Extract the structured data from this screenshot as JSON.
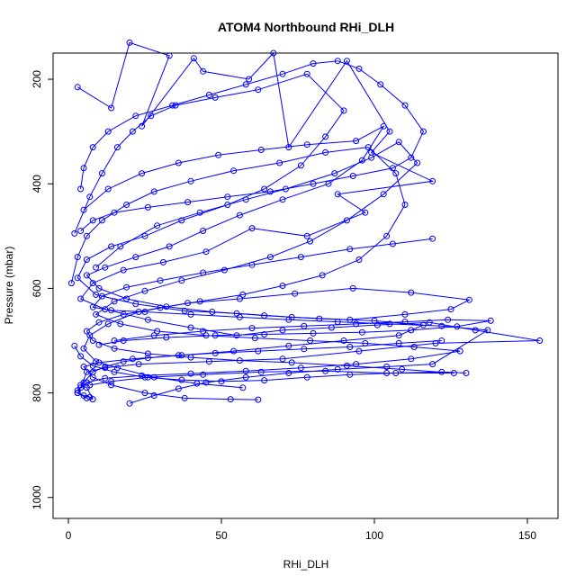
{
  "chart_data": {
    "type": "scatter",
    "title": "ATOM4 Northbound RHi_DLH",
    "xlabel": "RHi_DLH",
    "ylabel": "Pressure (mbar)",
    "xlim": [
      -5,
      160
    ],
    "ylim": [
      1040,
      150
    ],
    "y_reversed": true,
    "x_ticks": [
      0,
      50,
      100,
      150
    ],
    "y_ticks": [
      200,
      400,
      600,
      800,
      1000
    ],
    "grid": false,
    "legend": "none",
    "marker": "open-circle",
    "connected": true,
    "series_color": "#0000ff",
    "series": [
      {
        "values": [
          [
            3,
            215
          ],
          [
            14,
            255
          ],
          [
            20,
            130
          ],
          [
            33,
            155
          ],
          [
            24,
            290
          ],
          [
            41,
            160
          ],
          [
            44,
            185
          ],
          [
            59,
            200
          ],
          [
            67,
            150
          ],
          [
            72,
            330
          ],
          [
            91,
            165
          ],
          [
            105,
            300
          ],
          [
            99,
            340
          ],
          [
            119,
            395
          ],
          [
            88,
            420
          ],
          [
            97,
            455
          ],
          [
            78,
            500
          ],
          [
            60,
            485
          ],
          [
            45,
            530
          ],
          [
            31,
            550
          ],
          [
            18,
            565
          ],
          [
            8,
            590
          ],
          [
            4,
            620
          ],
          [
            12,
            640
          ],
          [
            26,
            660
          ],
          [
            40,
            675
          ],
          [
            55,
            690
          ],
          [
            70,
            680
          ],
          [
            86,
            675
          ],
          [
            101,
            670
          ],
          [
            118,
            665
          ],
          [
            133,
            680
          ],
          [
            154,
            700
          ],
          [
            120,
            705
          ],
          [
            95,
            720
          ],
          [
            70,
            735
          ],
          [
            46,
            740
          ],
          [
            23,
            745
          ],
          [
            12,
            752
          ],
          [
            6,
            760
          ],
          [
            4,
            790
          ],
          [
            3,
            800
          ],
          [
            6,
            810
          ]
        ]
      },
      {
        "values": [
          [
            2,
            495
          ],
          [
            7,
            425
          ],
          [
            11,
            380
          ],
          [
            16,
            330
          ],
          [
            21,
            300
          ],
          [
            27,
            270
          ],
          [
            35,
            250
          ],
          [
            48,
            235
          ],
          [
            62,
            220
          ],
          [
            78,
            190
          ],
          [
            90,
            260
          ],
          [
            84,
            310
          ],
          [
            76,
            365
          ],
          [
            64,
            410
          ],
          [
            52,
            440
          ],
          [
            37,
            470
          ],
          [
            25,
            500
          ],
          [
            14,
            520
          ],
          [
            6,
            545
          ],
          [
            3,
            580
          ],
          [
            9,
            612
          ],
          [
            22,
            630
          ],
          [
            38,
            643
          ],
          [
            55,
            648
          ],
          [
            73,
            655
          ],
          [
            92,
            660
          ],
          [
            110,
            650
          ],
          [
            125,
            640
          ],
          [
            131,
            622
          ],
          [
            112,
            608
          ],
          [
            93,
            600
          ],
          [
            74,
            610
          ],
          [
            56,
            620
          ],
          [
            39,
            628
          ],
          [
            23,
            645
          ],
          [
            13,
            668
          ],
          [
            7,
            690
          ],
          [
            5,
            715
          ],
          [
            9,
            740
          ],
          [
            16,
            752
          ],
          [
            28,
            770
          ],
          [
            42,
            782
          ],
          [
            57,
            790
          ]
        ]
      },
      {
        "values": [
          [
            5,
            450
          ],
          [
            13,
            410
          ],
          [
            24,
            380
          ],
          [
            36,
            360
          ],
          [
            49,
            345
          ],
          [
            63,
            335
          ],
          [
            78,
            325
          ],
          [
            94,
            318
          ],
          [
            103,
            290
          ],
          [
            96,
            355
          ],
          [
            85,
            400
          ],
          [
            70,
            430
          ],
          [
            56,
            460
          ],
          [
            44,
            490
          ],
          [
            33,
            520
          ],
          [
            22,
            540
          ],
          [
            12,
            560
          ],
          [
            6,
            575
          ],
          [
            10,
            600
          ],
          [
            19,
            620
          ],
          [
            32,
            635
          ],
          [
            47,
            645
          ],
          [
            64,
            652
          ],
          [
            82,
            658
          ],
          [
            100,
            662
          ],
          [
            116,
            670
          ],
          [
            108,
            690
          ],
          [
            90,
            700
          ],
          [
            72,
            710
          ],
          [
            54,
            720
          ],
          [
            37,
            728
          ],
          [
            21,
            735
          ],
          [
            10,
            742
          ],
          [
            5,
            750
          ],
          [
            8,
            770
          ],
          [
            14,
            785
          ],
          [
            25,
            800
          ],
          [
            38,
            810
          ],
          [
            53,
            812
          ],
          [
            62,
            813
          ]
        ]
      },
      {
        "values": [
          [
            9,
            560
          ],
          [
            17,
            520
          ],
          [
            29,
            480
          ],
          [
            43,
            455
          ],
          [
            58,
            430
          ],
          [
            71,
            410
          ],
          [
            87,
            380
          ],
          [
            99,
            350
          ],
          [
            108,
            320
          ],
          [
            114,
            360
          ],
          [
            103,
            420
          ],
          [
            91,
            470
          ],
          [
            79,
            510
          ],
          [
            66,
            540
          ],
          [
            51,
            565
          ],
          [
            37,
            585
          ],
          [
            25,
            605
          ],
          [
            15,
            625
          ],
          [
            9,
            650
          ],
          [
            17,
            668
          ],
          [
            29,
            682
          ],
          [
            45,
            690
          ],
          [
            61,
            695
          ],
          [
            79,
            700
          ],
          [
            97,
            705
          ],
          [
            113,
            712
          ],
          [
            128,
            720
          ],
          [
            112,
            735
          ],
          [
            94,
            745
          ],
          [
            76,
            752
          ],
          [
            58,
            758
          ],
          [
            40,
            763
          ],
          [
            24,
            767
          ],
          [
            12,
            772
          ],
          [
            6,
            780
          ],
          [
            3,
            795
          ]
        ]
      },
      {
        "values": [
          [
            1,
            590
          ],
          [
            3,
            540
          ],
          [
            6,
            500
          ],
          [
            11,
            470
          ],
          [
            19,
            440
          ],
          [
            28,
            415
          ],
          [
            40,
            395
          ],
          [
            54,
            375
          ],
          [
            69,
            360
          ],
          [
            84,
            340
          ],
          [
            98,
            330
          ],
          [
            107,
            380
          ],
          [
            110,
            440
          ],
          [
            104,
            500
          ],
          [
            95,
            545
          ],
          [
            83,
            575
          ],
          [
            70,
            595
          ],
          [
            57,
            612
          ],
          [
            43,
            625
          ],
          [
            30,
            637
          ],
          [
            18,
            650
          ],
          [
            10,
            665
          ],
          [
            6,
            682
          ],
          [
            8,
            700
          ],
          [
            15,
            715
          ],
          [
            26,
            725
          ],
          [
            40,
            732
          ],
          [
            56,
            738
          ],
          [
            73,
            742
          ],
          [
            91,
            748
          ],
          [
            109,
            755
          ],
          [
            126,
            762
          ],
          [
            104,
            762
          ],
          [
            84,
            758
          ],
          [
            63,
            760
          ],
          [
            44,
            765
          ],
          [
            26,
            770
          ],
          [
            14,
            778
          ],
          [
            7,
            785
          ]
        ]
      },
      {
        "values": [
          [
            20,
            820
          ],
          [
            28,
            805
          ],
          [
            36,
            792
          ],
          [
            45,
            780
          ],
          [
            58,
            770
          ],
          [
            72,
            762
          ],
          [
            88,
            755
          ],
          [
            104,
            750
          ],
          [
            119,
            745
          ],
          [
            137,
            680
          ],
          [
            122,
            672
          ],
          [
            105,
            668
          ],
          [
            88,
            664
          ],
          [
            72,
            660
          ],
          [
            56,
            655
          ],
          [
            40,
            650
          ],
          [
            25,
            645
          ],
          [
            14,
            642
          ],
          [
            8,
            636
          ],
          [
            11,
            615
          ],
          [
            19,
            598
          ],
          [
            30,
            585
          ],
          [
            44,
            570
          ],
          [
            60,
            555
          ],
          [
            76,
            540
          ],
          [
            92,
            525
          ],
          [
            106,
            515
          ],
          [
            119,
            505
          ]
        ]
      },
      {
        "values": [
          [
            15,
            700
          ],
          [
            28,
            690
          ],
          [
            44,
            682
          ],
          [
            60,
            676
          ],
          [
            77,
            672
          ],
          [
            94,
            668
          ],
          [
            110,
            664
          ],
          [
            124,
            660
          ],
          [
            138,
            662
          ],
          [
            127,
            673
          ],
          [
            112,
            680
          ],
          [
            96,
            684
          ],
          [
            80,
            686
          ],
          [
            64,
            688
          ],
          [
            48,
            690
          ],
          [
            32,
            694
          ],
          [
            18,
            700
          ],
          [
            10,
            708
          ]
        ]
      },
      {
        "values": [
          [
            4,
            490
          ],
          [
            8,
            470
          ],
          [
            15,
            455
          ],
          [
            26,
            445
          ],
          [
            39,
            435
          ],
          [
            52,
            425
          ],
          [
            66,
            415
          ],
          [
            80,
            400
          ],
          [
            93,
            385
          ],
          [
            106,
            370
          ],
          [
            112,
            350
          ],
          [
            116,
            300
          ],
          [
            110,
            250
          ],
          [
            102,
            210
          ],
          [
            95,
            180
          ],
          [
            88,
            165
          ],
          [
            80,
            170
          ],
          [
            70,
            190
          ],
          [
            58,
            210
          ],
          [
            46,
            230
          ],
          [
            34,
            250
          ],
          [
            22,
            270
          ],
          [
            13,
            300
          ],
          [
            8,
            330
          ],
          [
            5,
            370
          ],
          [
            4,
            410
          ]
        ]
      },
      {
        "values": [
          [
            2,
            710
          ],
          [
            4,
            730
          ],
          [
            8,
            748
          ],
          [
            15,
            760
          ],
          [
            25,
            770
          ],
          [
            37,
            775
          ],
          [
            50,
            778
          ],
          [
            64,
            776
          ],
          [
            78,
            770
          ],
          [
            92,
            765
          ],
          [
            107,
            762
          ],
          [
            122,
            760
          ],
          [
            130,
            762
          ]
        ]
      },
      {
        "values": [
          [
            3,
            800
          ],
          [
            5,
            805
          ],
          [
            7,
            808
          ],
          [
            8,
            812
          ],
          [
            6,
            790
          ],
          [
            4,
            785
          ],
          [
            5,
            780
          ],
          [
            8,
            760
          ],
          [
            12,
            750
          ],
          [
            18,
            740
          ],
          [
            26,
            733
          ],
          [
            36,
            728
          ],
          [
            48,
            724
          ],
          [
            62,
            720
          ],
          [
            77,
            716
          ],
          [
            92,
            712
          ],
          [
            108,
            705
          ],
          [
            122,
            700
          ]
        ]
      }
    ]
  }
}
